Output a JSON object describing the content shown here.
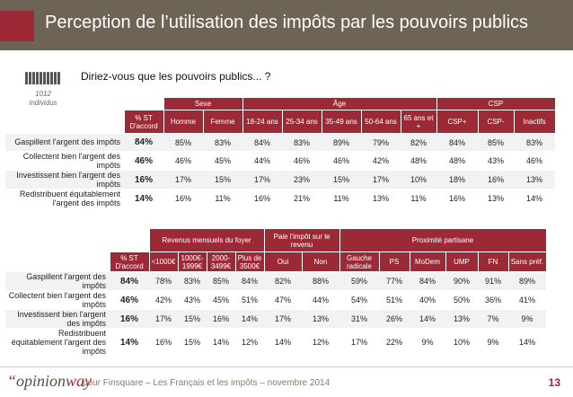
{
  "header": {
    "title": "Perception de l’utilisation des impôts par les pouvoirs publics"
  },
  "question": "Diriez-vous que les pouvoirs publics... ?",
  "sample": {
    "count": "1012",
    "unit": "individus"
  },
  "row_labels": [
    "Gaspillent l'argent des impôts",
    "Collectent bien l'argent des impôts",
    "Investissent bien l'argent des impôts",
    "Redistribuent équitablement l'argent des impôts"
  ],
  "table1": {
    "group_headers": {
      "sexe": "Sexe",
      "age": "Âge",
      "csp": "CSP"
    },
    "col_headers": [
      "% ST D'accord",
      "Homme",
      "Femme",
      "18-24 ans",
      "25-34 ans",
      "35-49 ans",
      "50-64 ans",
      "65 ans et +",
      "CSP+",
      "CSP-",
      "Inactifs"
    ],
    "rows": [
      [
        "84%",
        "85%",
        "83%",
        "84%",
        "83%",
        "89%",
        "79%",
        "82%",
        "84%",
        "85%",
        "83%"
      ],
      [
        "46%",
        "46%",
        "45%",
        "44%",
        "46%",
        "46%",
        "42%",
        "48%",
        "48%",
        "43%",
        "46%"
      ],
      [
        "16%",
        "17%",
        "15%",
        "17%",
        "23%",
        "15%",
        "17%",
        "10%",
        "18%",
        "16%",
        "13%"
      ],
      [
        "14%",
        "16%",
        "11%",
        "16%",
        "21%",
        "11%",
        "13%",
        "11%",
        "16%",
        "13%",
        "14%"
      ]
    ]
  },
  "table2": {
    "group_headers": {
      "revenus": "Revenus mensuels du foyer",
      "impot": "Paie l'impôt sur le revenu",
      "proximite": "Proximité partisane"
    },
    "col_headers": [
      "% ST D'accord",
      "<1000€",
      "1000€- 1999€",
      "2000- 3499€",
      "Plus de 3500€",
      "Oui",
      "Non",
      "Gauche radicale",
      "PS",
      "MoDem",
      "UMP",
      "FN",
      "Sans préf."
    ],
    "rows": [
      [
        "84%",
        "78%",
        "83%",
        "85%",
        "84%",
        "82%",
        "88%",
        "59%",
        "77%",
        "84%",
        "90%",
        "91%",
        "89%"
      ],
      [
        "46%",
        "42%",
        "43%",
        "45%",
        "51%",
        "47%",
        "44%",
        "54%",
        "51%",
        "40%",
        "50%",
        "36%",
        "41%"
      ],
      [
        "16%",
        "17%",
        "15%",
        "16%",
        "14%",
        "17%",
        "13%",
        "31%",
        "26%",
        "14%",
        "13%",
        "7%",
        "9%"
      ],
      [
        "14%",
        "16%",
        "15%",
        "14%",
        "12%",
        "14%",
        "12%",
        "17%",
        "22%",
        "9%",
        "10%",
        "9%",
        "14%"
      ]
    ]
  },
  "footer": {
    "logo_open": "“",
    "logo_a": "opinion",
    "logo_b": "way",
    "note": "pour Finsquare – Les Français et les impôts – novembre 2014",
    "page": "13"
  },
  "colors": {
    "header_bg": "#6e6456",
    "accent": "#9c2a36",
    "shade": "#f2f2f2"
  }
}
